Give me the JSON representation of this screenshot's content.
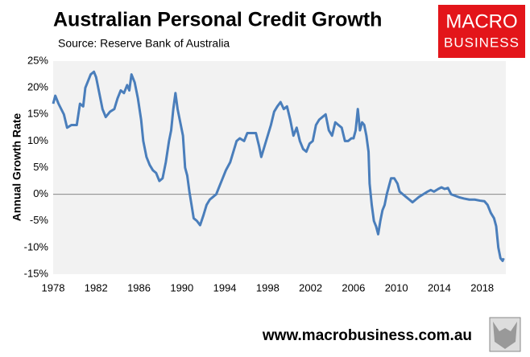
{
  "chart_data": {
    "type": "line",
    "title": "Australian Personal Credit Growth",
    "subtitle": "Source: Reserve Bank of Australia",
    "y_label": "Annual Growth Rate",
    "x": [
      1978.0,
      1978.2,
      1978.5,
      1979.0,
      1979.3,
      1979.7,
      1980.2,
      1980.5,
      1980.8,
      1981.0,
      1981.5,
      1981.8,
      1982.0,
      1982.3,
      1982.6,
      1982.9,
      1983.3,
      1983.7,
      1984.0,
      1984.3,
      1984.6,
      1984.9,
      1985.1,
      1985.3,
      1985.6,
      1985.9,
      1986.2,
      1986.4,
      1986.7,
      1987.0,
      1987.3,
      1987.6,
      1987.9,
      1988.2,
      1988.5,
      1988.8,
      1989.0,
      1989.2,
      1989.4,
      1989.6,
      1989.9,
      1990.1,
      1990.3,
      1990.5,
      1990.7,
      1990.9,
      1991.1,
      1991.4,
      1991.7,
      1992.0,
      1992.3,
      1992.6,
      1992.9,
      1993.2,
      1993.5,
      1993.8,
      1994.1,
      1994.5,
      1994.8,
      1995.1,
      1995.4,
      1995.8,
      1996.1,
      1996.5,
      1996.9,
      1997.2,
      1997.4,
      1997.7,
      1998.0,
      1998.3,
      1998.6,
      1998.9,
      1999.2,
      1999.5,
      1999.8,
      2000.1,
      2000.4,
      2000.7,
      2001.0,
      2001.3,
      2001.6,
      2001.9,
      2002.2,
      2002.5,
      2002.8,
      2003.1,
      2003.4,
      2003.7,
      2004.0,
      2004.3,
      2004.6,
      2004.9,
      2005.2,
      2005.5,
      2005.8,
      2006.0,
      2006.2,
      2006.4,
      2006.6,
      2006.8,
      2007.0,
      2007.2,
      2007.4,
      2007.5,
      2007.7,
      2007.9,
      2008.1,
      2008.3,
      2008.5,
      2008.7,
      2008.9,
      2009.1,
      2009.3,
      2009.5,
      2009.8,
      2010.1,
      2010.3,
      2010.6,
      2010.9,
      2011.2,
      2011.5,
      2011.8,
      2012.1,
      2012.5,
      2012.9,
      2013.2,
      2013.5,
      2013.9,
      2014.2,
      2014.5,
      2014.8,
      2015.1,
      2015.5,
      2015.9,
      2016.3,
      2016.8,
      2017.3,
      2017.8,
      2018.2,
      2018.5,
      2018.8,
      2019.1,
      2019.3,
      2019.5,
      2019.7,
      2019.9,
      2020.0
    ],
    "series": [
      {
        "name": "Personal credit growth",
        "color": "#4a7ebb",
        "values": [
          17,
          18.5,
          17,
          15,
          12.5,
          13,
          13,
          17,
          16.5,
          20,
          22.5,
          23,
          22,
          19,
          16,
          14.5,
          15.5,
          16,
          18,
          19.5,
          19,
          20.5,
          19.5,
          22.5,
          21,
          18,
          14,
          10,
          7,
          5.5,
          4.5,
          4,
          2.5,
          3,
          6,
          10,
          12,
          16,
          19,
          16,
          13,
          11,
          5,
          3.5,
          0.5,
          -2,
          -4.5,
          -5,
          -5.8,
          -4,
          -2,
          -1,
          -0.5,
          0,
          1.5,
          3,
          4.5,
          6,
          8,
          10,
          10.5,
          10,
          11.5,
          11.5,
          11.5,
          9,
          7,
          9,
          11,
          13,
          15.5,
          16.5,
          17.3,
          16,
          16.5,
          14,
          11,
          12.5,
          10,
          8.5,
          8,
          9.5,
          10,
          13,
          14,
          14.5,
          15,
          12,
          11,
          13.5,
          13,
          12.5,
          10,
          10,
          10.5,
          10.5,
          12,
          16,
          12,
          13.5,
          13,
          11,
          8,
          2,
          -2,
          -5,
          -6,
          -7.5,
          -5,
          -3,
          -2,
          0,
          1.5,
          3,
          3,
          2,
          0.5,
          0,
          -0.5,
          -1,
          -1.5,
          -1,
          -0.5,
          0,
          0.5,
          0.8,
          0.5,
          1,
          1.3,
          1,
          1.2,
          0,
          -0.3,
          -0.6,
          -0.8,
          -1,
          -1,
          -1.2,
          -1.3,
          -2,
          -3.5,
          -4.5,
          -6,
          -10,
          -12,
          -12.5,
          -12
        ]
      }
    ],
    "xlim": [
      1978,
      2020.2
    ],
    "xticks": [
      1978,
      1982,
      1986,
      1990,
      1994,
      1998,
      2002,
      2006,
      2010,
      2014,
      2018
    ],
    "ylim": [
      -15,
      25
    ],
    "yticks": [
      {
        "value": -15,
        "label": "-15%"
      },
      {
        "value": -10,
        "label": "-10%"
      },
      {
        "value": -5,
        "label": "-5%"
      },
      {
        "value": 0,
        "label": "0%"
      },
      {
        "value": 5,
        "label": "5%"
      },
      {
        "value": 10,
        "label": "10%"
      },
      {
        "value": 15,
        "label": "15%"
      },
      {
        "value": 20,
        "label": "20%"
      },
      {
        "value": 25,
        "label": "25%"
      }
    ],
    "zero_line": true
  },
  "logo": {
    "line1": "MACRO",
    "line2": "BUSINESS"
  },
  "footer": "www.macrobusiness.com.au"
}
